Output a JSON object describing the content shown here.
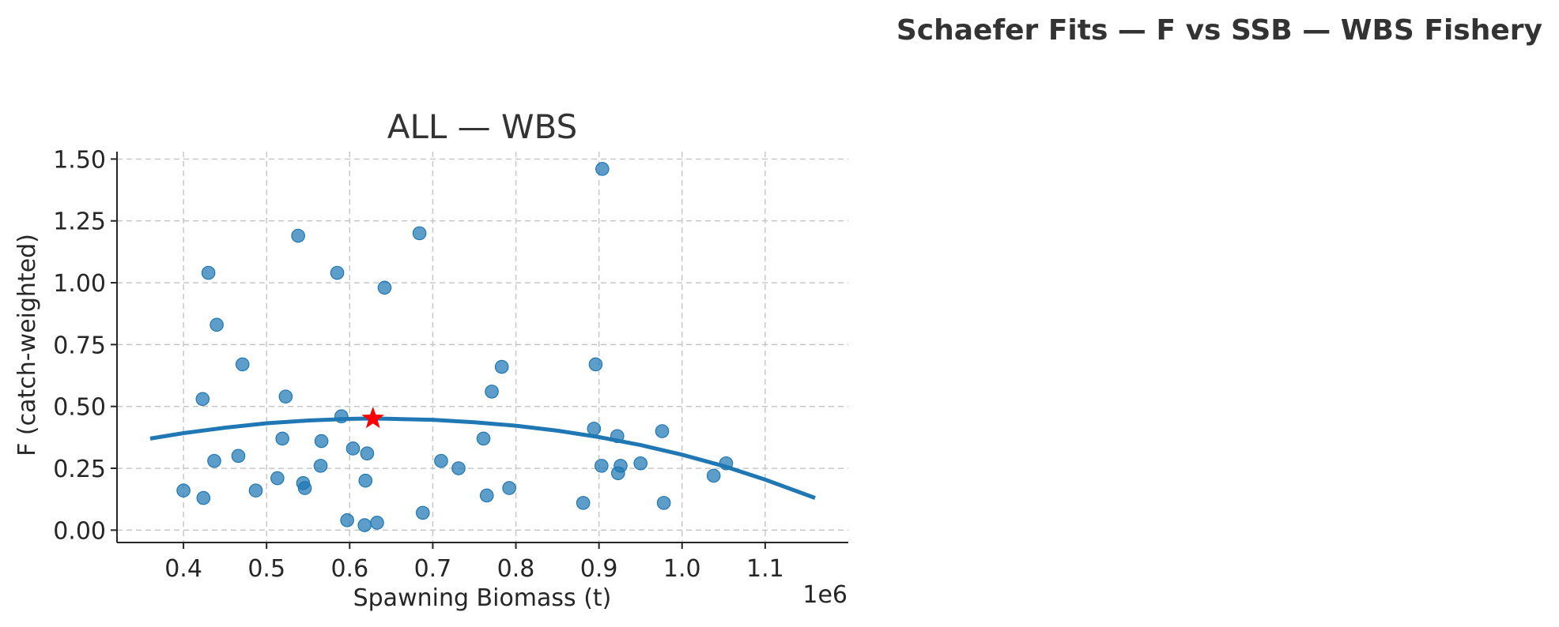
{
  "suptitle": "Schaefer Fits — F vs SSB — WBS Fishery",
  "chart_data": {
    "type": "scatter",
    "title": "ALL — WBS",
    "xlabel": "Spawning Biomass (t)",
    "ylabel": "F (catch-weighted)",
    "x_offset_label": "1e6",
    "x_scale_factor": 1000000,
    "xlim": [
      0.32,
      1.2
    ],
    "ylim": [
      -0.05,
      1.53
    ],
    "xticks": [
      0.4,
      0.5,
      0.6,
      0.7,
      0.8,
      0.9,
      1.0,
      1.1
    ],
    "xtick_labels": [
      "0.4",
      "0.5",
      "0.6",
      "0.7",
      "0.8",
      "0.9",
      "1.0",
      "1.1"
    ],
    "yticks": [
      0.0,
      0.25,
      0.5,
      0.75,
      1.0,
      1.25,
      1.5
    ],
    "ytick_labels": [
      "0.00",
      "0.25",
      "0.50",
      "0.75",
      "1.00",
      "1.25",
      "1.50"
    ],
    "grid": true,
    "colors": {
      "points": "#1f77b4",
      "curve": "#1f77b4",
      "star": "#ff0000"
    },
    "points": [
      {
        "x": 0.4,
        "y": 0.16
      },
      {
        "x": 0.423,
        "y": 0.53
      },
      {
        "x": 0.424,
        "y": 0.13
      },
      {
        "x": 0.43,
        "y": 1.04
      },
      {
        "x": 0.437,
        "y": 0.28
      },
      {
        "x": 0.44,
        "y": 0.83
      },
      {
        "x": 0.466,
        "y": 0.3
      },
      {
        "x": 0.471,
        "y": 0.67
      },
      {
        "x": 0.487,
        "y": 0.16
      },
      {
        "x": 0.513,
        "y": 0.21
      },
      {
        "x": 0.519,
        "y": 0.37
      },
      {
        "x": 0.523,
        "y": 0.54
      },
      {
        "x": 0.538,
        "y": 1.19
      },
      {
        "x": 0.544,
        "y": 0.19
      },
      {
        "x": 0.546,
        "y": 0.17
      },
      {
        "x": 0.565,
        "y": 0.26
      },
      {
        "x": 0.566,
        "y": 0.36
      },
      {
        "x": 0.585,
        "y": 1.04
      },
      {
        "x": 0.59,
        "y": 0.46
      },
      {
        "x": 0.597,
        "y": 0.04
      },
      {
        "x": 0.604,
        "y": 0.33
      },
      {
        "x": 0.618,
        "y": 0.02
      },
      {
        "x": 0.619,
        "y": 0.2
      },
      {
        "x": 0.621,
        "y": 0.31
      },
      {
        "x": 0.633,
        "y": 0.03
      },
      {
        "x": 0.642,
        "y": 0.98
      },
      {
        "x": 0.684,
        "y": 1.2
      },
      {
        "x": 0.688,
        "y": 0.07
      },
      {
        "x": 0.71,
        "y": 0.28
      },
      {
        "x": 0.731,
        "y": 0.25
      },
      {
        "x": 0.761,
        "y": 0.37
      },
      {
        "x": 0.765,
        "y": 0.14
      },
      {
        "x": 0.771,
        "y": 0.56
      },
      {
        "x": 0.783,
        "y": 0.66
      },
      {
        "x": 0.792,
        "y": 0.17
      },
      {
        "x": 0.881,
        "y": 0.11
      },
      {
        "x": 0.894,
        "y": 0.41
      },
      {
        "x": 0.896,
        "y": 0.67
      },
      {
        "x": 0.903,
        "y": 0.26
      },
      {
        "x": 0.904,
        "y": 1.46
      },
      {
        "x": 0.922,
        "y": 0.38
      },
      {
        "x": 0.923,
        "y": 0.23
      },
      {
        "x": 0.926,
        "y": 0.26
      },
      {
        "x": 0.95,
        "y": 0.27
      },
      {
        "x": 0.976,
        "y": 0.4
      },
      {
        "x": 0.978,
        "y": 0.11
      },
      {
        "x": 1.038,
        "y": 0.22
      },
      {
        "x": 1.053,
        "y": 0.27
      }
    ],
    "fit_curve": {
      "x": [
        0.36,
        0.4,
        0.45,
        0.5,
        0.55,
        0.6,
        0.628,
        0.65,
        0.7,
        0.75,
        0.8,
        0.85,
        0.9,
        0.95,
        1.0,
        1.05,
        1.1,
        1.16
      ],
      "y": [
        0.37,
        0.392,
        0.414,
        0.432,
        0.443,
        0.45,
        0.451,
        0.45,
        0.446,
        0.436,
        0.422,
        0.402,
        0.376,
        0.344,
        0.305,
        0.259,
        0.204,
        0.13
      ]
    },
    "msy_point": {
      "x": 0.628,
      "y": 0.451
    }
  }
}
